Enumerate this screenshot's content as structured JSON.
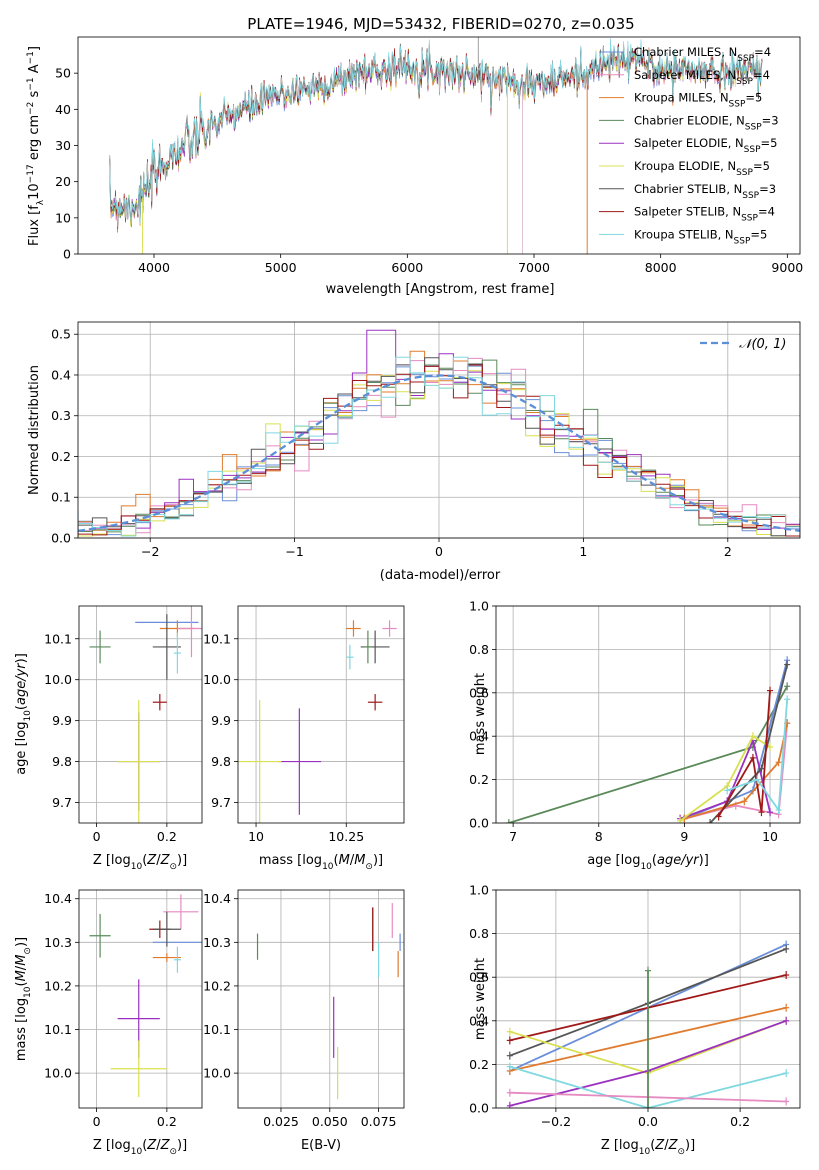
{
  "page_title": "PLATE=1946, MJD=53432, FIBERID=0270, z=0.035",
  "colors": {
    "Chabrier MILES": "#6a8fd8",
    "Salpeter MILES": "#e68ac2",
    "Kroupa MILES": "#e07b2e",
    "Chabrier ELODIE": "#5a8a5a",
    "Salpeter ELODIE": "#9b30c0",
    "Kroupa ELODIE": "#d8e050",
    "Chabrier STELIB": "#555555",
    "Salpeter STELIB": "#a01818",
    "Kroupa STELIB": "#80d8e0"
  },
  "chart_data": [
    {
      "id": "spectrum",
      "type": "line",
      "title": "PLATE=1946, MJD=53432, FIBERID=0270, z=0.035",
      "xlabel": "wavelength [Angstrom, rest frame]",
      "ylabel": "Flux [f_λ10^-17 erg cm^-2 s^-1 A^-1]",
      "xlim": [
        3400,
        9100
      ],
      "ylim": [
        0,
        60
      ],
      "xticks": [
        4000,
        5000,
        6000,
        7000,
        8000,
        9000
      ],
      "yticks": [
        0,
        10,
        20,
        30,
        40,
        50
      ],
      "legend_position": "right",
      "legend": [
        {
          "label": "Chabrier MILES, N",
          "sub": "SSP",
          "eq": "=4"
        },
        {
          "label": "Salpeter MILES, N",
          "sub": "SSP",
          "eq": "=4"
        },
        {
          "label": "Kroupa MILES, N",
          "sub": "SSP",
          "eq": "=5"
        },
        {
          "label": "Chabrier ELODIE, N",
          "sub": "SSP",
          "eq": "=3"
        },
        {
          "label": "Salpeter ELODIE, N",
          "sub": "SSP",
          "eq": "=5"
        },
        {
          "label": "Kroupa ELODIE, N",
          "sub": "SSP",
          "eq": "=5"
        },
        {
          "label": "Chabrier STELIB, N",
          "sub": "SSP",
          "eq": "=3"
        },
        {
          "label": "Salpeter STELIB, N",
          "sub": "SSP",
          "eq": "=4"
        },
        {
          "label": "Kroupa STELIB, N",
          "sub": "SSP",
          "eq": "=5"
        }
      ],
      "continuum": [
        [
          3650,
          14
        ],
        [
          3800,
          13
        ],
        [
          3900,
          15
        ],
        [
          4000,
          21
        ],
        [
          4100,
          26
        ],
        [
          4200,
          29
        ],
        [
          4300,
          31
        ],
        [
          4400,
          34
        ],
        [
          4500,
          36
        ],
        [
          4600,
          38
        ],
        [
          4700,
          40
        ],
        [
          4800,
          41
        ],
        [
          4900,
          43
        ],
        [
          5000,
          44
        ],
        [
          5200,
          46
        ],
        [
          5400,
          47
        ],
        [
          5600,
          50
        ],
        [
          5800,
          51
        ],
        [
          6000,
          52
        ],
        [
          6200,
          51
        ],
        [
          6400,
          50
        ],
        [
          6600,
          49
        ],
        [
          6800,
          48
        ],
        [
          7000,
          47
        ],
        [
          7200,
          48
        ],
        [
          7400,
          50
        ],
        [
          7600,
          53
        ],
        [
          7800,
          54
        ],
        [
          8000,
          51
        ],
        [
          8200,
          51
        ],
        [
          8400,
          50
        ],
        [
          8600,
          51
        ],
        [
          8800,
          51
        ]
      ]
    },
    {
      "id": "residuals",
      "type": "line",
      "xlabel": "(data-model)/error",
      "ylabel": "Normed distribution",
      "xlim": [
        -2.5,
        2.5
      ],
      "ylim": [
        0,
        0.53
      ],
      "xticks": [
        -2,
        -1,
        0,
        1,
        2
      ],
      "yticks": [
        0.0,
        0.1,
        0.2,
        0.3,
        0.4,
        0.5
      ],
      "legend_position": "top-right",
      "legend_label": "N(0,1)",
      "gaussian_sigma": 1.0
    },
    {
      "id": "age_vs_Z",
      "type": "scatter",
      "xlabel": "Z [log10(Z/Z⊙)]",
      "ylabel": "age  [log10(age/yr)]",
      "xlim": [
        -0.05,
        0.3
      ],
      "ylim": [
        9.65,
        10.18
      ],
      "xticks": [
        0.0,
        0.2
      ],
      "yticks": [
        9.7,
        9.8,
        9.9,
        10.0,
        10.1
      ],
      "points": [
        {
          "model": "Chabrier ELODIE",
          "x": 0.01,
          "y": 10.08,
          "xerr": 0.03,
          "yerr": 0.04
        },
        {
          "model": "Chabrier MILES",
          "x": 0.2,
          "y": 10.14,
          "xerr": 0.09,
          "yerr": 0.0
        },
        {
          "model": "Kroupa MILES",
          "x": 0.23,
          "y": 10.125,
          "xerr": 0.05,
          "yerr": 0.02
        },
        {
          "model": "Salpeter MILES",
          "x": 0.27,
          "y": 10.125,
          "xerr": 0.04,
          "yerr": 0.07
        },
        {
          "model": "Chabrier STELIB",
          "x": 0.2,
          "y": 10.08,
          "xerr": 0.04,
          "yerr": 0.08
        },
        {
          "model": "Kroupa STELIB",
          "x": 0.23,
          "y": 10.065,
          "xerr": 0.01,
          "yerr": 0.05
        },
        {
          "model": "Salpeter STELIB",
          "x": 0.18,
          "y": 9.945,
          "xerr": 0.02,
          "yerr": 0.02
        },
        {
          "model": "Salpeter ELODIE",
          "x": 0.12,
          "y": 9.8,
          "xerr": 0.06,
          "yerr": 0.12
        },
        {
          "model": "Kroupa ELODIE",
          "x": 0.12,
          "y": 9.8,
          "xerr": 0.06,
          "yerr": 0.15
        }
      ]
    },
    {
      "id": "age_vs_mass",
      "type": "scatter",
      "xlabel": "mass [log10(M/M⊙)]",
      "ylabel": "",
      "xlim": [
        9.95,
        10.41
      ],
      "ylim": [
        9.65,
        10.18
      ],
      "xticks": [
        10.0,
        10.25
      ],
      "yticks": [
        9.7,
        9.8,
        9.9,
        10.0,
        10.1
      ],
      "points": [
        {
          "model": "Chabrier MILES",
          "x": 10.3,
          "y": 10.14,
          "xerr": 0.0,
          "yerr": 0.0
        },
        {
          "model": "Kroupa MILES",
          "x": 10.27,
          "y": 10.125,
          "xerr": 0.02,
          "yerr": 0.02
        },
        {
          "model": "Salpeter MILES",
          "x": 10.37,
          "y": 10.125,
          "xerr": 0.02,
          "yerr": 0.02
        },
        {
          "model": "Chabrier STELIB",
          "x": 10.33,
          "y": 10.08,
          "xerr": 0.04,
          "yerr": 0.04
        },
        {
          "model": "Chabrier ELODIE",
          "x": 10.31,
          "y": 10.08,
          "xerr": 0.01,
          "yerr": 0.04
        },
        {
          "model": "Kroupa STELIB",
          "x": 10.26,
          "y": 10.055,
          "xerr": 0.01,
          "yerr": 0.03
        },
        {
          "model": "Salpeter STELIB",
          "x": 10.33,
          "y": 9.945,
          "xerr": 0.02,
          "yerr": 0.02
        },
        {
          "model": "Salpeter ELODIE",
          "x": 10.12,
          "y": 9.8,
          "xerr": 0.06,
          "yerr": 0.13
        },
        {
          "model": "Kroupa ELODIE",
          "x": 10.01,
          "y": 9.8,
          "xerr": 0.06,
          "yerr": 0.15
        }
      ]
    },
    {
      "id": "massweight_vs_age",
      "type": "line",
      "xlabel": "age  [log10(age/yr)]",
      "ylabel": "mass weight",
      "xlim": [
        6.8,
        10.35
      ],
      "ylim": [
        0,
        1.0
      ],
      "xticks": [
        7,
        8,
        9,
        10
      ],
      "yticks": [
        0.0,
        0.2,
        0.4,
        0.6,
        0.8,
        1.0
      ],
      "series": [
        {
          "model": "Chabrier ELODIE",
          "points": [
            [
              6.95,
              0.0
            ],
            [
              9.8,
              0.35
            ],
            [
              10.2,
              0.63
            ]
          ]
        },
        {
          "model": "Chabrier MILES",
          "points": [
            [
              9.0,
              0.02
            ],
            [
              9.5,
              0.1
            ],
            [
              9.8,
              0.15
            ],
            [
              10.2,
              0.75
            ]
          ]
        },
        {
          "model": "Salpeter MILES",
          "points": [
            [
              9.0,
              0.02
            ],
            [
              9.6,
              0.08
            ],
            [
              10.1,
              0.04
            ],
            [
              10.2,
              0.46
            ]
          ]
        },
        {
          "model": "Kroupa MILES",
          "points": [
            [
              9.0,
              0.02
            ],
            [
              9.7,
              0.1
            ],
            [
              10.1,
              0.28
            ],
            [
              10.2,
              0.46
            ]
          ]
        },
        {
          "model": "Salpeter ELODIE",
          "points": [
            [
              8.95,
              0.02
            ],
            [
              9.5,
              0.1
            ],
            [
              9.8,
              0.38
            ],
            [
              10.0,
              0.05
            ]
          ]
        },
        {
          "model": "Kroupa ELODIE",
          "points": [
            [
              8.95,
              0.01
            ],
            [
              9.5,
              0.17
            ],
            [
              9.8,
              0.4
            ],
            [
              10.0,
              0.35
            ]
          ]
        },
        {
          "model": "Chabrier STELIB",
          "points": [
            [
              9.3,
              0.0
            ],
            [
              9.9,
              0.25
            ],
            [
              10.2,
              0.73
            ]
          ]
        },
        {
          "model": "Salpeter STELIB",
          "points": [
            [
              9.4,
              0.03
            ],
            [
              9.8,
              0.3
            ],
            [
              9.9,
              0.05
            ],
            [
              10.0,
              0.61
            ]
          ]
        },
        {
          "model": "Kroupa STELIB",
          "points": [
            [
              9.5,
              0.15
            ],
            [
              9.85,
              0.2
            ],
            [
              10.1,
              0.06
            ],
            [
              10.2,
              0.57
            ]
          ]
        }
      ]
    },
    {
      "id": "mass_vs_Z",
      "type": "scatter",
      "xlabel": "Z [log10(Z/Z⊙)]",
      "ylabel": "mass [log10(M/M⊙)]",
      "xlim": [
        -0.05,
        0.3
      ],
      "ylim": [
        9.92,
        10.42
      ],
      "xticks": [
        0.0,
        0.2
      ],
      "yticks": [
        10.0,
        10.1,
        10.2,
        10.3,
        10.4
      ],
      "points": [
        {
          "model": "Chabrier ELODIE",
          "x": 0.01,
          "y": 10.315,
          "xerr": 0.03,
          "yerr": 0.05
        },
        {
          "model": "Salpeter MILES",
          "x": 0.24,
          "y": 10.37,
          "xerr": 0.05,
          "yerr": 0.04
        },
        {
          "model": "Chabrier MILES",
          "x": 0.23,
          "y": 10.3,
          "xerr": 0.07,
          "yerr": 0.0
        },
        {
          "model": "Salpeter STELIB",
          "x": 0.18,
          "y": 10.33,
          "xerr": 0.03,
          "yerr": 0.02
        },
        {
          "model": "Chabrier STELIB",
          "x": 0.2,
          "y": 10.33,
          "xerr": 0.04,
          "yerr": 0.04
        },
        {
          "model": "Kroupa MILES",
          "x": 0.2,
          "y": 10.265,
          "xerr": 0.04,
          "yerr": 0.01
        },
        {
          "model": "Kroupa STELIB",
          "x": 0.23,
          "y": 10.26,
          "xerr": 0.01,
          "yerr": 0.03
        },
        {
          "model": "Salpeter ELODIE",
          "x": 0.12,
          "y": 10.125,
          "xerr": 0.06,
          "yerr": 0.09
        },
        {
          "model": "Kroupa ELODIE",
          "x": 0.12,
          "y": 10.01,
          "xerr": 0.08,
          "yerr": 0.065
        }
      ]
    },
    {
      "id": "mass_vs_EBV",
      "type": "scatter",
      "xlabel": "E(B-V)",
      "ylabel": "",
      "xlim": [
        0.003,
        0.088
      ],
      "ylim": [
        9.92,
        10.42
      ],
      "xticks": [
        0.025,
        0.05,
        0.075
      ],
      "xticklabels": [
        "0.025",
        "0.050",
        "0.075"
      ],
      "yticks": [
        10.0,
        10.1,
        10.2,
        10.3,
        10.4
      ],
      "points": [
        {
          "model": "Chabrier ELODIE",
          "x": 0.013,
          "y": 10.29,
          "xerr": 0.0,
          "yerr": 0.03
        },
        {
          "model": "Salpeter MILES",
          "x": 0.082,
          "y": 10.35,
          "xerr": 0.0,
          "yerr": 0.04
        },
        {
          "model": "Chabrier STELIB",
          "x": 0.072,
          "y": 10.33,
          "xerr": 0.0,
          "yerr": 0.05
        },
        {
          "model": "Salpeter STELIB",
          "x": 0.072,
          "y": 10.33,
          "xerr": 0.0,
          "yerr": 0.05
        },
        {
          "model": "Chabrier MILES",
          "x": 0.086,
          "y": 10.3,
          "xerr": 0.0,
          "yerr": 0.02
        },
        {
          "model": "Kroupa MILES",
          "x": 0.085,
          "y": 10.25,
          "xerr": 0.0,
          "yerr": 0.03
        },
        {
          "model": "Kroupa STELIB",
          "x": 0.075,
          "y": 10.26,
          "xerr": 0.0,
          "yerr": 0.04
        },
        {
          "model": "Salpeter ELODIE",
          "x": 0.052,
          "y": 10.105,
          "xerr": 0.0,
          "yerr": 0.07
        },
        {
          "model": "Kroupa ELODIE",
          "x": 0.054,
          "y": 10.0,
          "xerr": 0.0,
          "yerr": 0.06
        }
      ]
    },
    {
      "id": "massweight_vs_Z",
      "type": "line",
      "xlabel": "Z [log10(Z/Z⊙)]",
      "ylabel": "mass weight",
      "xlim": [
        -0.33,
        0.33
      ],
      "ylim": [
        0,
        1.0
      ],
      "xticks": [
        -0.2,
        0.0,
        0.2
      ],
      "xticklabels": [
        "−0.2",
        "0.0",
        "0.2"
      ],
      "yticks": [
        0.0,
        0.2,
        0.4,
        0.6,
        0.8,
        1.0
      ],
      "series": [
        {
          "model": "Chabrier MILES",
          "points": [
            [
              -0.3,
              0.17
            ],
            [
              0.3,
              0.75
            ]
          ]
        },
        {
          "model": "Chabrier STELIB",
          "points": [
            [
              -0.3,
              0.24
            ],
            [
              0.0,
              0.48
            ],
            [
              0.3,
              0.73
            ]
          ]
        },
        {
          "model": "Salpeter STELIB",
          "points": [
            [
              -0.3,
              0.31
            ],
            [
              0.3,
              0.61
            ]
          ]
        },
        {
          "model": "Kroupa MILES",
          "points": [
            [
              -0.3,
              0.17
            ],
            [
              0.3,
              0.46
            ]
          ]
        },
        {
          "model": "Kroupa ELODIE",
          "points": [
            [
              -0.3,
              0.35
            ],
            [
              0.0,
              0.16
            ],
            [
              0.3,
              0.4
            ]
          ]
        },
        {
          "model": "Salpeter ELODIE",
          "points": [
            [
              -0.3,
              0.01
            ],
            [
              0.0,
              0.17
            ],
            [
              0.3,
              0.4
            ]
          ]
        },
        {
          "model": "Kroupa STELIB",
          "points": [
            [
              -0.3,
              0.19
            ],
            [
              0.0,
              0.0
            ],
            [
              0.3,
              0.16
            ]
          ]
        },
        {
          "model": "Salpeter MILES",
          "points": [
            [
              -0.3,
              0.07
            ],
            [
              0.3,
              0.03
            ]
          ]
        },
        {
          "model": "Chabrier ELODIE",
          "points": [
            [
              0.0,
              0.0
            ],
            [
              0.0,
              0.63
            ]
          ]
        }
      ]
    }
  ]
}
